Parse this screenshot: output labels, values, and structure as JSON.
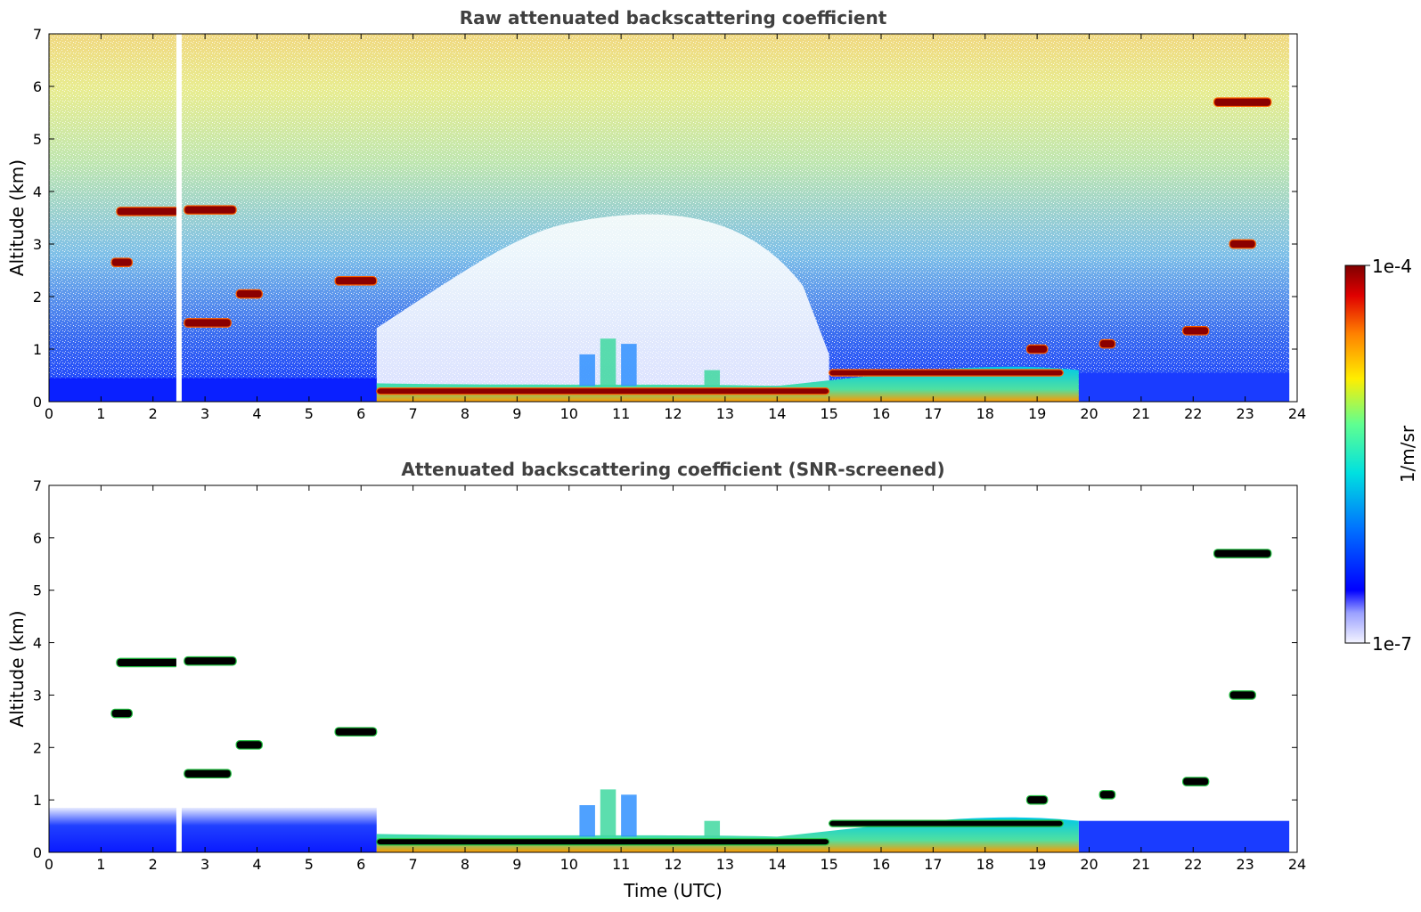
{
  "colors": {
    "low": "#0000ff",
    "mid": "#00e0e0",
    "high": "#ffdd00",
    "peak": "#8b0000",
    "screened_cloud": "#000000"
  },
  "chart_data": [
    {
      "type": "heatmap",
      "title": "Raw attenuated backscattering coefficient",
      "xlabel": "",
      "ylabel": "Altitude (km)",
      "xlim": [
        0,
        24
      ],
      "ylim": [
        0,
        7
      ],
      "xticks": [
        "0",
        "1",
        "2",
        "3",
        "4",
        "5",
        "6",
        "7",
        "8",
        "9",
        "10",
        "11",
        "12",
        "13",
        "14",
        "15",
        "16",
        "17",
        "18",
        "19",
        "20",
        "21",
        "22",
        "23",
        "24"
      ],
      "yticks": [
        "0",
        "1",
        "2",
        "3",
        "4",
        "5",
        "6",
        "7"
      ],
      "gaps": [
        {
          "t": 2.5,
          "alt": [
            0,
            7
          ]
        }
      ],
      "cloud_layers": [
        {
          "t0": 1.3,
          "t1": 2.5,
          "alt": 3.62
        },
        {
          "t0": 2.6,
          "t1": 3.6,
          "alt": 3.65
        },
        {
          "t0": 1.2,
          "t1": 1.6,
          "alt": 2.65
        },
        {
          "t0": 3.6,
          "t1": 4.1,
          "alt": 2.05
        },
        {
          "t0": 5.5,
          "t1": 6.3,
          "alt": 2.3
        },
        {
          "t0": 2.6,
          "t1": 3.5,
          "alt": 1.5
        },
        {
          "t0": 6.3,
          "t1": 15.0,
          "alt": 0.2
        },
        {
          "t0": 15.0,
          "t1": 19.5,
          "alt": 0.55
        },
        {
          "t0": 18.8,
          "t1": 19.2,
          "alt": 1.0
        },
        {
          "t0": 20.2,
          "t1": 20.5,
          "alt": 1.1
        },
        {
          "t0": 21.8,
          "t1": 22.3,
          "alt": 1.35
        },
        {
          "t0": 22.4,
          "t1": 23.5,
          "alt": 5.7
        },
        {
          "t0": 22.7,
          "t1": 23.2,
          "alt": 3.0
        }
      ]
    },
    {
      "type": "heatmap",
      "title": "Attenuated backscattering coefficient (SNR-screened)",
      "xlabel": "Time (UTC)",
      "ylabel": "Altitude (km)",
      "xlim": [
        0,
        24
      ],
      "ylim": [
        0,
        7
      ],
      "xticks": [
        "0",
        "1",
        "2",
        "3",
        "4",
        "5",
        "6",
        "7",
        "8",
        "9",
        "10",
        "11",
        "12",
        "13",
        "14",
        "15",
        "16",
        "17",
        "18",
        "19",
        "20",
        "21",
        "22",
        "23",
        "24"
      ],
      "yticks": [
        "0",
        "1",
        "2",
        "3",
        "4",
        "5",
        "6",
        "7"
      ],
      "gaps": [
        {
          "t": 2.5,
          "alt": [
            0,
            7
          ]
        }
      ]
    }
  ],
  "colorbar": {
    "label": "1/m/sr",
    "max_label": "1e-4",
    "min_label": "1e-7",
    "scale": "log",
    "range": [
      1e-07,
      0.0001
    ]
  }
}
